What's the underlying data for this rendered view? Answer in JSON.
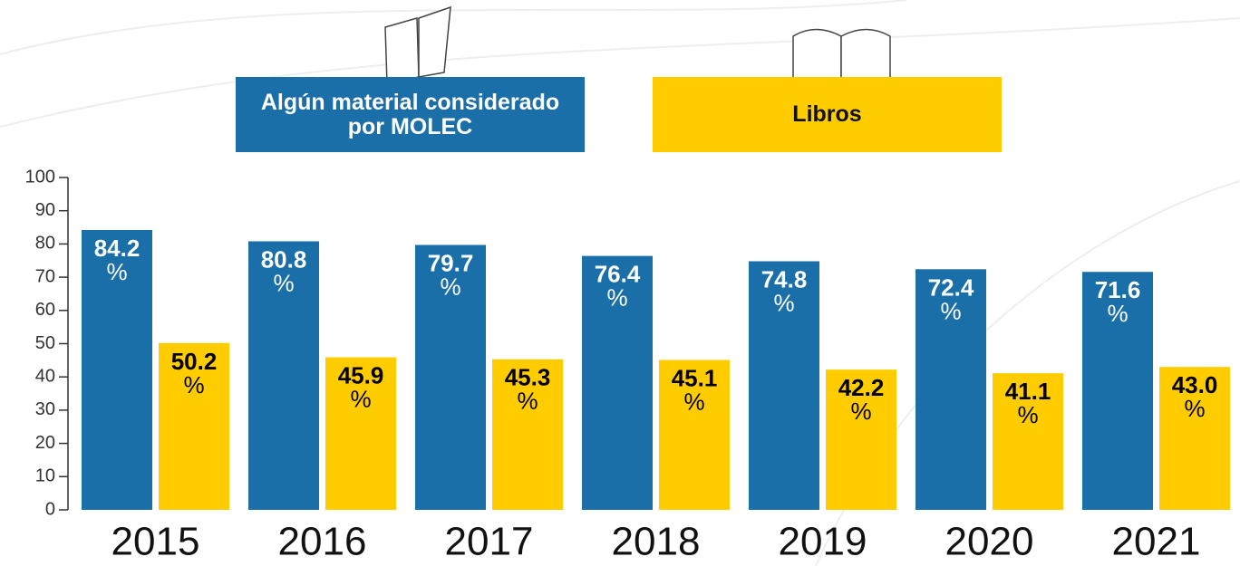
{
  "chart_data": {
    "type": "bar",
    "categories": [
      "2015",
      "2016",
      "2017",
      "2018",
      "2019",
      "2020",
      "2021"
    ],
    "series": [
      {
        "name": "Algún material considerado por MOLEC",
        "color": "#1b6fa8",
        "values": [
          84.2,
          80.8,
          79.7,
          76.4,
          74.8,
          72.4,
          71.6
        ],
        "value_labels": [
          "84.2 %",
          "80.8 %",
          "79.7 %",
          "76.4 %",
          "74.8 %",
          "72.4 %",
          "71.6 %"
        ]
      },
      {
        "name": "Libros",
        "color": "#ffcc00",
        "values": [
          50.2,
          45.9,
          45.3,
          45.1,
          42.2,
          41.1,
          43.0
        ],
        "value_labels": [
          "50.2 %",
          "45.9 %",
          "45.3 %",
          "45.1 %",
          "42.2 %",
          "41.1 %",
          "43.0 %"
        ]
      }
    ],
    "ylim": [
      0,
      100
    ],
    "yticks": [
      0,
      10,
      20,
      30,
      40,
      50,
      60,
      70,
      80,
      90,
      100
    ]
  }
}
